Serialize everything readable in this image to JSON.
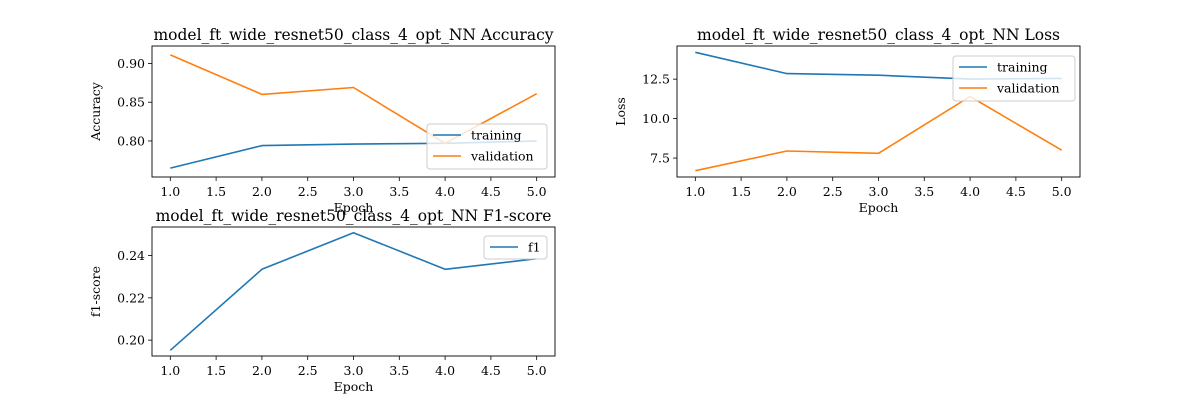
{
  "chart_data": [
    {
      "id": "accuracy",
      "type": "line",
      "title": "model_ft_wide_resnet50_class_4_opt_NN Accuracy",
      "xlabel": "Epoch",
      "ylabel": "Accuracy",
      "x": [
        1,
        2,
        3,
        4,
        5
      ],
      "xlim": [
        0.8,
        5.2
      ],
      "ylim": [
        0.7535,
        0.9225
      ],
      "xticks": [
        1.0,
        1.5,
        2.0,
        2.5,
        3.0,
        3.5,
        4.0,
        4.5,
        5.0
      ],
      "xtick_labels": [
        "1.0",
        "1.5",
        "2.0",
        "2.5",
        "3.0",
        "3.5",
        "4.0",
        "4.5",
        "5.0"
      ],
      "yticks": [
        0.8,
        0.85,
        0.9
      ],
      "ytick_labels": [
        "0.80",
        "0.85",
        "0.90"
      ],
      "legend_position": "lower-right",
      "series": [
        {
          "name": "training",
          "color": "#1f77b4",
          "values": [
            0.765,
            0.794,
            0.796,
            0.797,
            0.8
          ]
        },
        {
          "name": "validation",
          "color": "#ff7f0e",
          "values": [
            0.911,
            0.86,
            0.869,
            0.797,
            0.861
          ]
        }
      ]
    },
    {
      "id": "loss",
      "type": "line",
      "title": "model_ft_wide_resnet50_class_4_opt_NN Loss",
      "xlabel": "Epoch",
      "ylabel": "Loss",
      "x": [
        1,
        2,
        3,
        4,
        5
      ],
      "xlim": [
        0.8,
        5.2
      ],
      "ylim": [
        6.3,
        14.6
      ],
      "xticks": [
        1.0,
        1.5,
        2.0,
        2.5,
        3.0,
        3.5,
        4.0,
        4.5,
        5.0
      ],
      "xtick_labels": [
        "1.0",
        "1.5",
        "2.0",
        "2.5",
        "3.0",
        "3.5",
        "4.0",
        "4.5",
        "5.0"
      ],
      "yticks": [
        7.5,
        10.0,
        12.5
      ],
      "ytick_labels": [
        "7.5",
        "10.0",
        "12.5"
      ],
      "legend_position": "upper-right",
      "series": [
        {
          "name": "training",
          "color": "#1f77b4",
          "values": [
            14.2,
            12.85,
            12.75,
            12.5,
            12.55
          ]
        },
        {
          "name": "validation",
          "color": "#ff7f0e",
          "values": [
            6.7,
            7.95,
            7.8,
            11.4,
            8.0
          ]
        }
      ]
    },
    {
      "id": "f1",
      "type": "line",
      "title": "model_ft_wide_resnet50_class_4_opt_NN F1-score",
      "xlabel": "Epoch",
      "ylabel": "f1-score",
      "x": [
        1,
        2,
        3,
        4,
        5
      ],
      "xlim": [
        0.8,
        5.2
      ],
      "ylim": [
        0.1925,
        0.2535
      ],
      "xticks": [
        1.0,
        1.5,
        2.0,
        2.5,
        3.0,
        3.5,
        4.0,
        4.5,
        5.0
      ],
      "xtick_labels": [
        "1.0",
        "1.5",
        "2.0",
        "2.5",
        "3.0",
        "3.5",
        "4.0",
        "4.5",
        "5.0"
      ],
      "yticks": [
        0.2,
        0.22,
        0.24
      ],
      "ytick_labels": [
        "0.20",
        "0.22",
        "0.24"
      ],
      "legend_position": "upper-right",
      "series": [
        {
          "name": "f1",
          "color": "#1f77b4",
          "values": [
            0.1952,
            0.2335,
            0.2508,
            0.2335,
            0.2385
          ]
        }
      ]
    }
  ]
}
